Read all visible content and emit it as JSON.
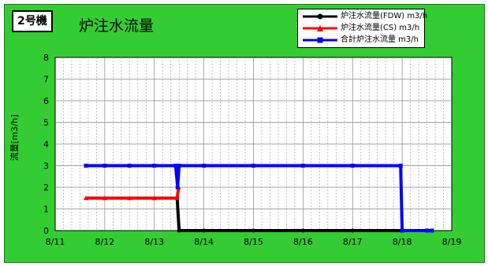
{
  "unit_label": "2号機",
  "chart_data": {
    "type": "line",
    "title": "炉注水流量",
    "xlabel": "",
    "ylabel": "流量[m3/h]",
    "ylim": [
      0,
      8
    ],
    "yticks": [
      "0",
      "1",
      "2",
      "3",
      "4",
      "5",
      "6",
      "7",
      "8"
    ],
    "xlim": [
      0,
      8
    ],
    "xticks": [
      "8/11",
      "8/12",
      "8/13",
      "8/14",
      "8/15",
      "8/16",
      "8/17",
      "8/18",
      "8/19"
    ],
    "grid": true,
    "legend_position": "top-right",
    "series": [
      {
        "name": "炉注水流量(FDW) m3/h",
        "color": "#000000",
        "marker": "circle",
        "x": [
          1.5,
          1.8,
          2.2,
          2.46,
          2.5,
          3.0,
          4.0,
          5.0,
          6.0,
          7.0,
          7.6
        ],
        "y": [
          null,
          null,
          null,
          1.5,
          0,
          0,
          0,
          0,
          0,
          0,
          0
        ]
      },
      {
        "name": "炉注水流量(CS) m3/h",
        "color": "#ff0000",
        "marker": "triangle",
        "x": [
          0.62,
          1.0,
          1.5,
          2.0,
          2.46,
          2.49
        ],
        "y": [
          1.5,
          1.5,
          1.5,
          1.5,
          1.5,
          2.0
        ]
      },
      {
        "name": "合計炉注水流量 m3/h",
        "color": "#0000ff",
        "marker": "square",
        "x": [
          0.62,
          1.0,
          1.5,
          2.0,
          2.43,
          2.47,
          2.5,
          3.0,
          4.0,
          5.0,
          6.0,
          6.97,
          7.0,
          7.5,
          7.6
        ],
        "y": [
          3.0,
          3.0,
          3.0,
          3.0,
          3.0,
          2.0,
          3.0,
          3.0,
          3.0,
          3.0,
          3.0,
          3.0,
          0,
          0,
          0
        ]
      }
    ]
  },
  "colors": {
    "background": "#33cc33",
    "plot": "#ffffff",
    "grid": "#999999"
  }
}
